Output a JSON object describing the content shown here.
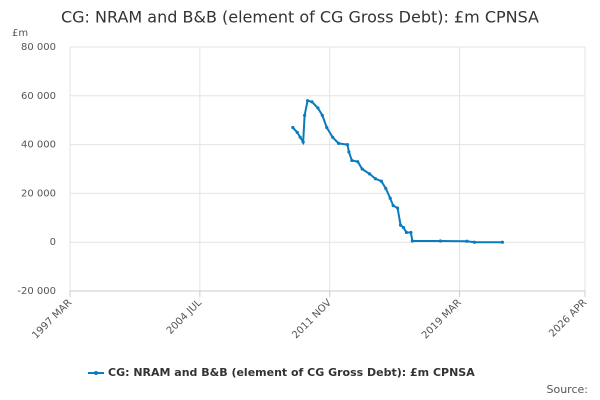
{
  "chart_data": {
    "type": "line",
    "title": "CG: NRAM and B&B (element of CG Gross Debt): £m CPNSA",
    "y_unit": "£m",
    "source": "Source:",
    "x": [
      "2009-10",
      "2010-01",
      "2010-03",
      "2010-05",
      "2010-06",
      "2010-08",
      "2010-11",
      "2011-03",
      "2011-06",
      "2011-09",
      "2012-01",
      "2012-05",
      "2012-11",
      "2012-12",
      "2013-02",
      "2013-06",
      "2013-09",
      "2014-02",
      "2014-06",
      "2014-10",
      "2015-01",
      "2015-04",
      "2015-06",
      "2015-09",
      "2015-11",
      "2016-01",
      "2016-03",
      "2016-06",
      "2016-07",
      "2018-02",
      "2019-08",
      "2020-01",
      "2021-08"
    ],
    "series": [
      {
        "name": "CG: NRAM and B&B (element of CG Gross Debt): £m CPNSA",
        "color": "#0a7bbf",
        "values": [
          47000,
          45000,
          43000,
          41000,
          52000,
          58000,
          57500,
          55000,
          52000,
          47000,
          43000,
          40500,
          40000,
          37000,
          33500,
          33000,
          30000,
          28000,
          26000,
          25000,
          22000,
          18000,
          15000,
          14000,
          7000,
          6000,
          4000,
          4000,
          500,
          500,
          400,
          0,
          0
        ]
      }
    ],
    "xlim": [
      "1997-03",
      "2026-04"
    ],
    "xticks": [
      {
        "value": "1997-03",
        "label": "1997 MAR"
      },
      {
        "value": "2004-07",
        "label": "2004 JUL"
      },
      {
        "value": "2011-11",
        "label": "2011 NOV"
      },
      {
        "value": "2019-03",
        "label": "2019 MAR"
      },
      {
        "value": "2026-04",
        "label": "2026 APR"
      }
    ],
    "ylim": [
      -20000,
      80000
    ],
    "yticks": [
      {
        "value": -20000,
        "label": "-20 000"
      },
      0,
      {
        "value": 20000,
        "label": "20 000"
      },
      {
        "value": 40000,
        "label": "40 000"
      },
      {
        "value": 60000,
        "label": "60 000"
      },
      {
        "value": 80000,
        "label": "80 000"
      }
    ],
    "grid": true
  }
}
